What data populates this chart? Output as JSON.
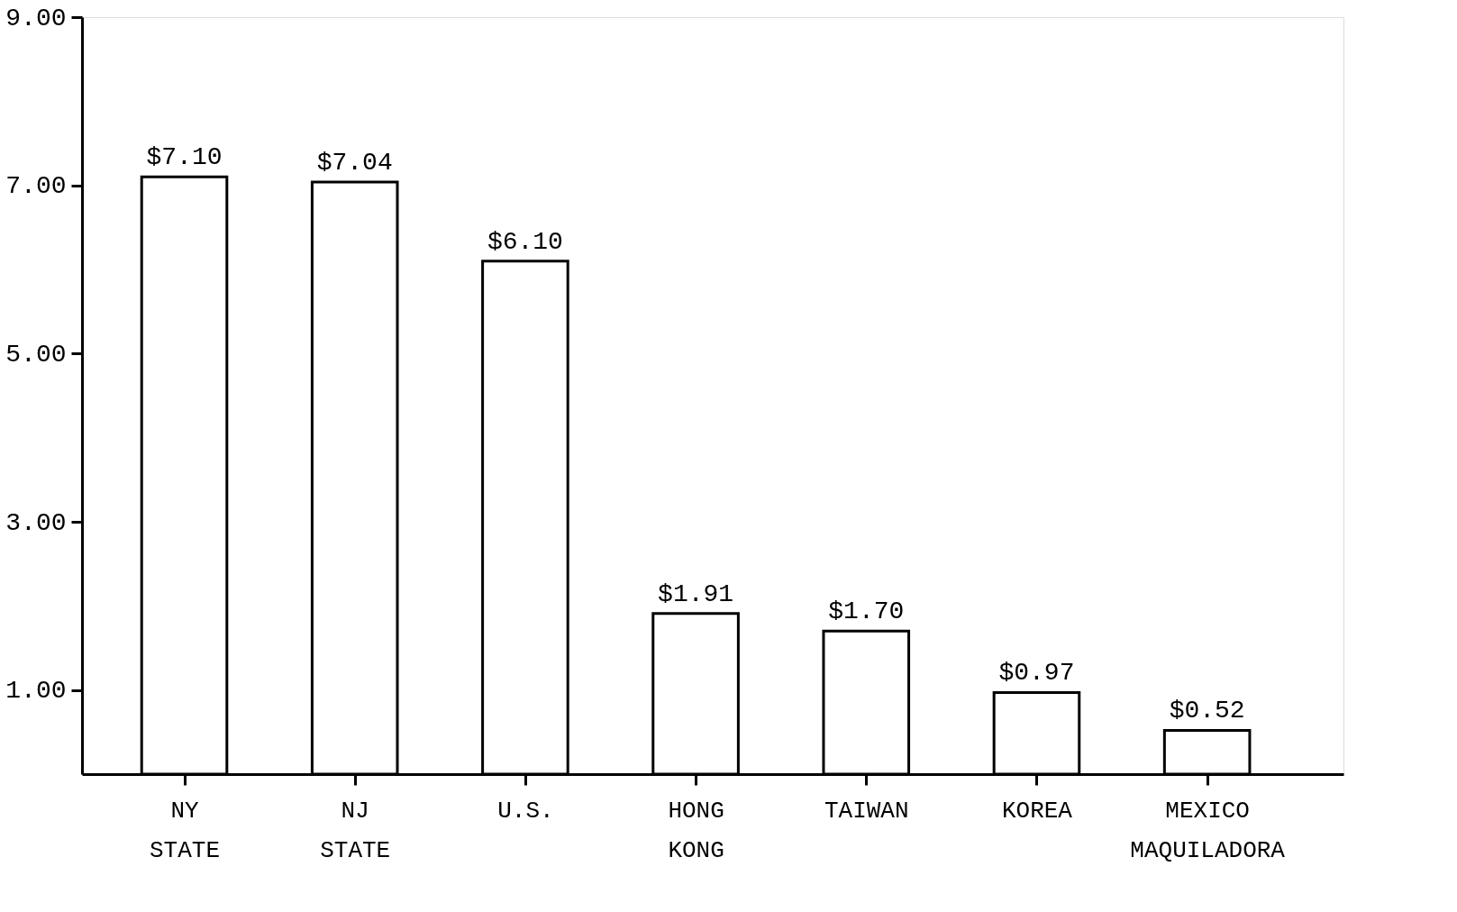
{
  "chart_data": {
    "type": "bar",
    "categories": [
      "NY STATE",
      "NJ STATE",
      "U.S.",
      "HONG KONG",
      "TAIWAN",
      "KOREA",
      "MEXICO MAQUILADORA"
    ],
    "values": [
      7.1,
      7.04,
      6.1,
      1.91,
      1.7,
      0.97,
      0.52
    ],
    "value_labels": [
      "$7.10",
      "$7.04",
      "$6.10",
      "$1.91",
      "$1.70",
      "$0.97",
      "$0.52"
    ],
    "color": "#ffffff",
    "ylim": [
      0,
      9
    ],
    "yticks": [
      {
        "value": 1,
        "label": "1.00"
      },
      {
        "value": 3,
        "label": "3.00"
      },
      {
        "value": 5,
        "label": "5.00"
      },
      {
        "value": 7,
        "label": "7.00"
      },
      {
        "value": 9,
        "label": "9.00"
      }
    ],
    "grid": false
  }
}
